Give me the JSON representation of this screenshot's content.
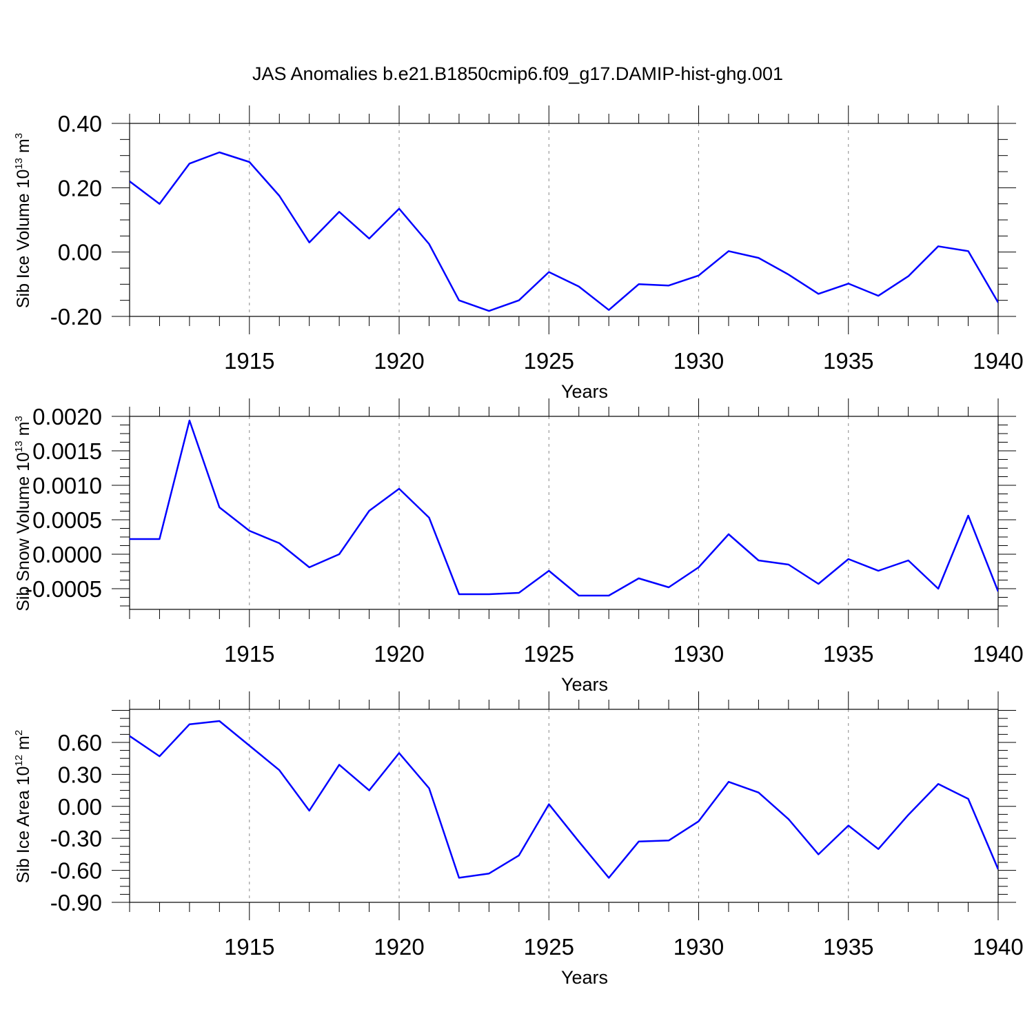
{
  "title": "JAS Anomalies b.e21.B1850cmip6.f09_g17.DAMIP-hist-ghg.001",
  "colors": {
    "line": "#0000ff",
    "axis": "#000000",
    "grid": "#888888"
  },
  "chart_data": [
    {
      "type": "line",
      "ylabel_main": "Sib Ice Volume 10",
      "ylabel_sup": "13",
      "ylabel_unit": " m",
      "ylabel_unit_sup": "3",
      "xlabel": "Years",
      "xlim": [
        1911,
        1940
      ],
      "ylim": [
        -0.2,
        0.4
      ],
      "xticks": [
        "1915",
        "1920",
        "1925",
        "1930",
        "1935",
        "1940"
      ],
      "yticks": [
        "-0.20",
        "0.00",
        "0.20",
        "0.40"
      ],
      "grid": "vertical dashed at major x ticks",
      "x": [
        1911,
        1912,
        1913,
        1914,
        1915,
        1916,
        1917,
        1918,
        1919,
        1920,
        1921,
        1922,
        1923,
        1924,
        1925,
        1926,
        1927,
        1928,
        1929,
        1930,
        1931,
        1932,
        1933,
        1934,
        1935,
        1936,
        1937,
        1938,
        1939,
        1940
      ],
      "values": [
        0.22,
        0.15,
        0.275,
        0.31,
        0.28,
        0.175,
        0.03,
        0.125,
        0.042,
        0.135,
        0.025,
        -0.15,
        -0.183,
        -0.15,
        -0.062,
        -0.107,
        -0.18,
        -0.1,
        -0.104,
        -0.073,
        0.003,
        -0.018,
        -0.07,
        -0.13,
        -0.098,
        -0.136,
        -0.075,
        0.018,
        0.003,
        -0.157
      ]
    },
    {
      "type": "line",
      "ylabel_main": "Sib Snow Volume 10",
      "ylabel_sup": "13",
      "ylabel_unit": " m",
      "ylabel_unit_sup": "3",
      "xlabel": "Years",
      "xlim": [
        1911,
        1940
      ],
      "ylim": [
        -0.0008,
        0.002
      ],
      "xticks": [
        "1915",
        "1920",
        "1925",
        "1930",
        "1935",
        "1940"
      ],
      "yticks": [
        "-0.0005",
        "0.0000",
        "0.0005",
        "0.0010",
        "0.0015",
        "0.0020"
      ],
      "grid": "vertical dashed at major x ticks",
      "x": [
        1911,
        1912,
        1913,
        1914,
        1915,
        1916,
        1917,
        1918,
        1919,
        1920,
        1921,
        1922,
        1923,
        1924,
        1925,
        1926,
        1927,
        1928,
        1929,
        1930,
        1931,
        1932,
        1933,
        1934,
        1935,
        1936,
        1937,
        1938,
        1939,
        1940
      ],
      "values": [
        0.00022,
        0.00022,
        0.00194,
        0.00068,
        0.00034,
        0.00016,
        -0.00019,
        0.0,
        0.00063,
        0.00095,
        0.00053,
        -0.00058,
        -0.00058,
        -0.00056,
        -0.00024,
        -0.0006,
        -0.0006,
        -0.00035,
        -0.00048,
        -0.00019,
        0.00029,
        -9e-05,
        -0.00015,
        -0.00043,
        -7e-05,
        -0.00024,
        -9e-05,
        -0.0005,
        0.00056,
        -0.00054
      ]
    },
    {
      "type": "line",
      "ylabel_main": "Sib Ice Area 10",
      "ylabel_sup": "12",
      "ylabel_unit": " m",
      "ylabel_unit_sup": "2",
      "xlabel": "Years",
      "xlim": [
        1911,
        1940
      ],
      "ylim": [
        -0.9,
        0.91
      ],
      "xticks": [
        "1915",
        "1920",
        "1925",
        "1930",
        "1935",
        "1940"
      ],
      "yticks": [
        "-0.90",
        "-0.60",
        "-0.30",
        "0.00",
        "0.30",
        "0.60"
      ],
      "grid": "vertical dashed at major x ticks",
      "x": [
        1911,
        1912,
        1913,
        1914,
        1915,
        1916,
        1917,
        1918,
        1919,
        1920,
        1921,
        1922,
        1923,
        1924,
        1925,
        1926,
        1927,
        1928,
        1929,
        1930,
        1931,
        1932,
        1933,
        1934,
        1935,
        1936,
        1937,
        1938,
        1939,
        1940
      ],
      "values": [
        0.66,
        0.47,
        0.77,
        0.8,
        0.57,
        0.34,
        -0.04,
        0.39,
        0.15,
        0.5,
        0.17,
        -0.67,
        -0.63,
        -0.46,
        0.02,
        -0.33,
        -0.67,
        -0.33,
        -0.32,
        -0.14,
        0.23,
        0.13,
        -0.12,
        -0.45,
        -0.18,
        -0.4,
        -0.08,
        0.21,
        0.07,
        -0.59
      ]
    }
  ]
}
